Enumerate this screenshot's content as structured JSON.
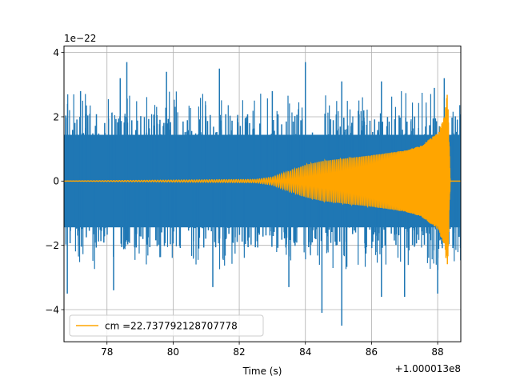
{
  "chart_data": {
    "type": "line",
    "title": "",
    "xlabel": "Time (s)",
    "ylabel": "",
    "x_offset_label": "+1.000013e8",
    "y_scale_label": "1e−22",
    "xlim": [
      76.7,
      88.7
    ],
    "ylim": [
      -5.0,
      4.2
    ],
    "x_ticks": [
      78,
      80,
      82,
      84,
      86,
      88
    ],
    "x_tick_labels": [
      "78",
      "80",
      "82",
      "84",
      "86",
      "88"
    ],
    "y_ticks": [
      -4,
      -2,
      0,
      2,
      4
    ],
    "y_tick_labels": [
      "−4",
      "−2",
      "0",
      "2",
      "4"
    ],
    "grid": true,
    "legend_position": "lower left",
    "series": [
      {
        "role": "strain data (unlabeled)",
        "color": "#1f77b4",
        "x_range": [
          76.7,
          88.7
        ],
        "envelope_typical_max": 1.8,
        "peaks_high": [
          {
            "x": 77.2,
            "y": 2.8
          },
          {
            "x": 78.4,
            "y": 3.2
          },
          {
            "x": 78.6,
            "y": 3.7
          },
          {
            "x": 79.8,
            "y": 3.4
          },
          {
            "x": 81.4,
            "y": 3.5
          },
          {
            "x": 83.0,
            "y": 2.8
          },
          {
            "x": 84.0,
            "y": 3.7
          },
          {
            "x": 85.1,
            "y": 3.1
          },
          {
            "x": 86.3,
            "y": 3.1
          },
          {
            "x": 87.9,
            "y": 2.9
          },
          {
            "x": 88.2,
            "y": 3.2
          }
        ],
        "peaks_low": [
          {
            "x": 76.8,
            "y": -3.5
          },
          {
            "x": 78.2,
            "y": -3.4
          },
          {
            "x": 81.2,
            "y": -3.3
          },
          {
            "x": 83.5,
            "y": -3.3
          },
          {
            "x": 84.5,
            "y": -4.1
          },
          {
            "x": 85.1,
            "y": -4.5
          },
          {
            "x": 86.3,
            "y": -3.6
          },
          {
            "x": 87.0,
            "y": -3.6
          },
          {
            "x": 88.0,
            "y": -3.5
          }
        ]
      },
      {
        "name": "cm =22.737792128707778",
        "color": "#ffa500",
        "kind": "chirp",
        "envelope": [
          {
            "x": 76.7,
            "y": 0.0
          },
          {
            "x": 82.5,
            "y": 0.05
          },
          {
            "x": 83.0,
            "y": 0.12
          },
          {
            "x": 83.5,
            "y": 0.3
          },
          {
            "x": 84.0,
            "y": 0.5
          },
          {
            "x": 84.5,
            "y": 0.62
          },
          {
            "x": 85.0,
            "y": 0.68
          },
          {
            "x": 86.0,
            "y": 0.8
          },
          {
            "x": 87.0,
            "y": 0.95
          },
          {
            "x": 87.5,
            "y": 1.1
          },
          {
            "x": 88.0,
            "y": 1.5
          },
          {
            "x": 88.2,
            "y": 2.0
          },
          {
            "x": 88.3,
            "y": 2.8
          },
          {
            "x": 88.38,
            "y": 0.0
          },
          {
            "x": 88.7,
            "y": 0.0
          }
        ]
      }
    ]
  }
}
